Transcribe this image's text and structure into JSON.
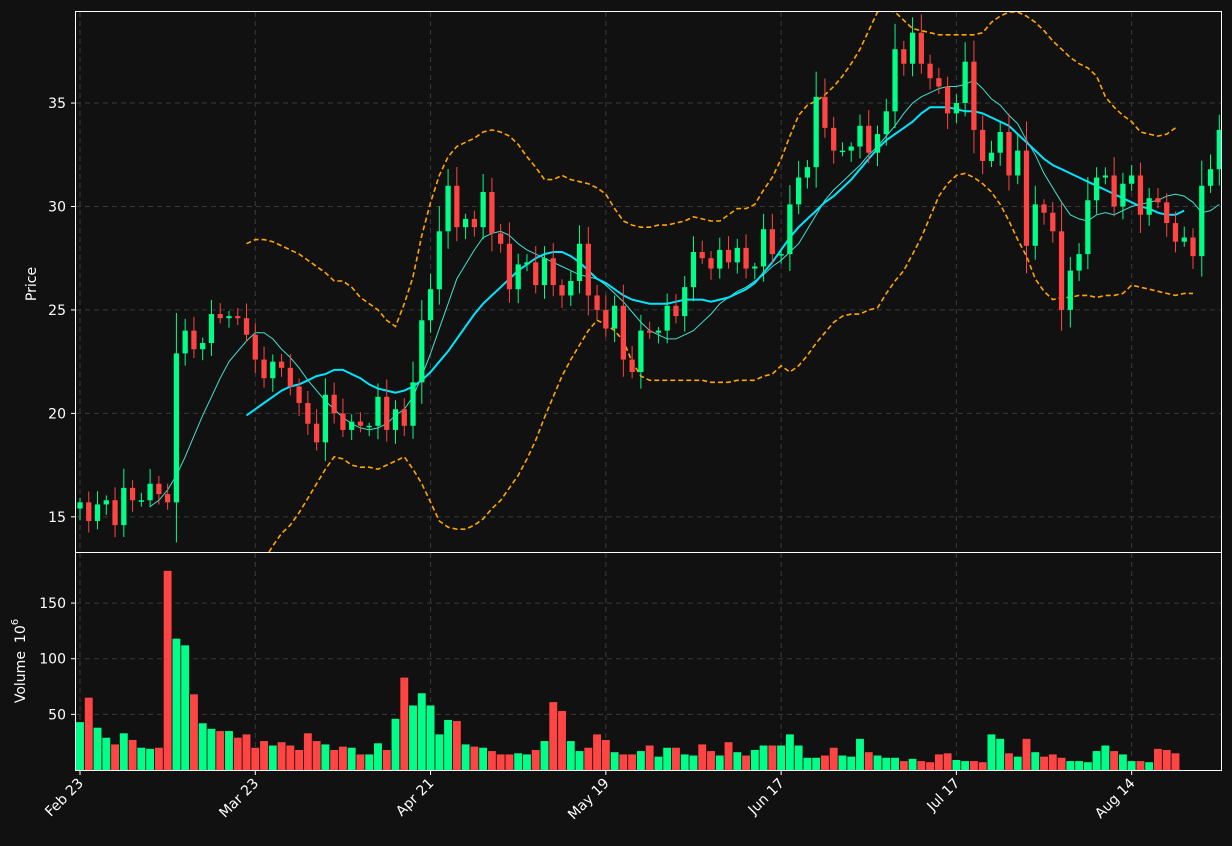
{
  "theme": {
    "background": "#111111",
    "up_color": "#00ff88",
    "down_color": "#ff4444",
    "sma_fast_color": "#40e0d0",
    "sma_slow_color": "#00e5ff",
    "bollinger_color": "#ffa500"
  },
  "chart_data": {
    "type": "candlestick",
    "title": "",
    "xlabel": "",
    "price_ylabel": "Price",
    "volume_ylabel": "Volume",
    "volume_unit_label": "10",
    "volume_unit_exp": "6",
    "price_ylim": [
      13.3,
      39.4
    ],
    "volume_ylim": [
      0,
      195
    ],
    "price_yticks": [
      15,
      20,
      25,
      30,
      35
    ],
    "volume_yticks": [
      50,
      100,
      150
    ],
    "xticks": [
      {
        "index": 0,
        "label": "Feb 23"
      },
      {
        "index": 20,
        "label": "Mar 23"
      },
      {
        "index": 40,
        "label": "Apr 21"
      },
      {
        "index": 60,
        "label": "May 19"
      },
      {
        "index": 80,
        "label": "Jun 17"
      },
      {
        "index": 100,
        "label": "Jul 17"
      },
      {
        "index": 120,
        "label": "Aug 14"
      }
    ],
    "grid": true,
    "series": [
      {
        "name": "Candles",
        "close": [
          15.7,
          14.8,
          15.6,
          15.8,
          14.6,
          16.4,
          15.8,
          15.8,
          16.6,
          16.1,
          15.7,
          22.9,
          24.0,
          23.1,
          23.4,
          24.8,
          24.6,
          24.7,
          24.6,
          23.8,
          22.6,
          21.7,
          22.5,
          22.2,
          21.3,
          20.5,
          19.5,
          18.6,
          20.9,
          20.0,
          19.2,
          19.6,
          19.4,
          19.4,
          20.8,
          19.2,
          20.2,
          19.4,
          21.5,
          24.5,
          26.0,
          28.8,
          31.0,
          29.0,
          29.4,
          29.0,
          30.7,
          28.7,
          28.2,
          26.0,
          27.2,
          27.3,
          26.2,
          27.5,
          26.2,
          25.7,
          26.4,
          28.2,
          25.7,
          25.0,
          24.1,
          25.2,
          22.6,
          22.0,
          24.0,
          23.9,
          24.0,
          25.2,
          24.7,
          26.1,
          27.8,
          27.5,
          27.0,
          27.9,
          27.3,
          28.0,
          27.0,
          27.1,
          28.9,
          27.7,
          27.7,
          30.1,
          31.4,
          31.9,
          35.3,
          33.8,
          32.7,
          32.7,
          32.9,
          33.9,
          32.6,
          33.5,
          34.6,
          37.6,
          36.9,
          38.4,
          36.9,
          36.2,
          35.8,
          34.5,
          35.0,
          37.0,
          33.7,
          32.2,
          32.6,
          33.6,
          31.5,
          32.7,
          28.1,
          30.1,
          29.7,
          28.8,
          25.0,
          26.9,
          27.7,
          30.3,
          31.4,
          31.5,
          30.0,
          31.1,
          31.5,
          29.6,
          30.4,
          30.2,
          29.2,
          28.3,
          28.5,
          27.6,
          31.0,
          31.8,
          33.7
        ]
      },
      {
        "name": "Volume",
        "values": [
          43,
          65,
          38,
          29,
          23,
          33,
          27,
          20,
          19,
          20,
          179,
          118,
          112,
          68,
          42,
          37,
          35,
          35,
          29,
          32,
          20,
          26,
          22,
          25,
          22,
          18,
          33,
          26,
          23,
          18,
          21,
          20,
          14,
          14,
          24,
          18,
          46,
          83,
          58,
          69,
          58,
          32,
          45,
          44,
          23,
          21,
          20,
          17,
          14,
          14,
          15,
          14,
          18,
          26,
          61,
          53,
          26,
          17,
          20,
          32,
          27,
          16,
          14,
          14,
          17,
          22,
          12,
          20,
          20,
          14,
          13,
          23,
          17,
          13,
          25,
          16,
          13,
          18,
          22,
          22,
          22,
          32,
          22,
          11,
          11,
          13,
          20,
          13,
          12,
          28,
          16,
          13,
          11,
          11,
          8,
          10,
          8,
          7,
          14,
          15,
          9,
          8,
          8,
          7,
          32,
          28,
          15,
          12,
          28,
          16,
          12,
          14,
          11,
          8,
          8,
          7,
          17,
          22,
          17,
          14,
          8,
          8,
          7,
          19,
          18,
          15
        ]
      },
      {
        "name": "SMA fast",
        "values": [
          null,
          null,
          null,
          null,
          null,
          null,
          null,
          null,
          15.5,
          15.8,
          16.3,
          17.0,
          17.9,
          18.9,
          19.9,
          20.8,
          21.7,
          22.5,
          23.0,
          23.5,
          23.9,
          23.9,
          23.6,
          23.1,
          22.7,
          22.2,
          21.6,
          21.1,
          20.6,
          20.2,
          19.8,
          19.5,
          19.3,
          19.2,
          19.3,
          19.5,
          19.9,
          20.2,
          20.8,
          21.8,
          22.9,
          24.1,
          25.3,
          26.5,
          27.2,
          27.9,
          28.5,
          28.7,
          28.8,
          28.6,
          28.2,
          27.9,
          27.7,
          27.5,
          27.3,
          27.1,
          26.9,
          26.7,
          26.6,
          26.5,
          26.2,
          25.8,
          25.4,
          24.9,
          24.4,
          24.0,
          23.8,
          23.6,
          23.6,
          23.8,
          24.0,
          24.4,
          24.8,
          25.3,
          25.6,
          25.9,
          26.1,
          26.4,
          26.7,
          27.1,
          27.4,
          27.8,
          28.2,
          28.9,
          29.6,
          30.3,
          30.8,
          31.2,
          31.6,
          32.0,
          32.5,
          32.9,
          33.4,
          33.9,
          34.5,
          35.0,
          35.3,
          35.5,
          35.7,
          35.8,
          35.8,
          35.9,
          36.1,
          35.7,
          35.2,
          34.9,
          34.4,
          34.0,
          33.2,
          32.5,
          31.6,
          30.9,
          30.2,
          29.6,
          29.4,
          29.3,
          29.6,
          29.7,
          29.6,
          29.8,
          30.0,
          30.1,
          30.2,
          30.3,
          30.5,
          30.6,
          30.5,
          30.2,
          29.7,
          29.8,
          30.1
        ]
      },
      {
        "name": "SMA slow",
        "values": [
          null,
          null,
          null,
          null,
          null,
          null,
          null,
          null,
          null,
          null,
          null,
          null,
          null,
          null,
          null,
          null,
          null,
          null,
          null,
          19.9,
          20.2,
          20.5,
          20.8,
          21.1,
          21.3,
          21.4,
          21.6,
          21.8,
          21.9,
          22.1,
          22.1,
          21.9,
          21.7,
          21.4,
          21.2,
          21.1,
          21.0,
          21.1,
          21.3,
          21.6,
          22.0,
          22.5,
          23.0,
          23.6,
          24.2,
          24.8,
          25.3,
          25.7,
          26.1,
          26.5,
          26.9,
          27.2,
          27.5,
          27.7,
          27.8,
          27.8,
          27.6,
          27.3,
          26.9,
          26.5,
          26.3,
          26.0,
          25.7,
          25.5,
          25.4,
          25.3,
          25.3,
          25.3,
          25.4,
          25.5,
          25.5,
          25.5,
          25.4,
          25.5,
          25.6,
          25.8,
          26.0,
          26.3,
          26.8,
          27.3,
          27.9,
          28.5,
          29.0,
          29.4,
          29.8,
          30.2,
          30.5,
          30.9,
          31.3,
          31.8,
          32.3,
          32.8,
          33.2,
          33.5,
          33.8,
          34.1,
          34.5,
          34.8,
          34.8,
          34.8,
          34.7,
          34.6,
          34.6,
          34.5,
          34.3,
          34.1,
          33.9,
          33.5,
          33.1,
          32.7,
          32.3,
          32.0,
          31.8,
          31.6,
          31.4,
          31.2,
          31.0,
          30.8,
          30.6,
          30.4,
          30.2,
          30.0,
          29.9,
          29.7,
          29.6,
          29.6,
          29.8
        ]
      },
      {
        "name": "Bollinger upper",
        "values": [
          null,
          null,
          null,
          null,
          null,
          null,
          null,
          null,
          null,
          null,
          null,
          null,
          null,
          null,
          null,
          null,
          null,
          null,
          null,
          28.2,
          28.4,
          28.4,
          28.3,
          28.1,
          27.9,
          27.7,
          27.4,
          27.1,
          26.8,
          26.4,
          26.4,
          26.1,
          25.6,
          25.3,
          25.0,
          24.5,
          24.2,
          25.3,
          26.6,
          28.6,
          30.2,
          31.5,
          32.4,
          32.9,
          33.1,
          33.3,
          33.6,
          33.7,
          33.6,
          33.4,
          33.0,
          32.4,
          31.9,
          31.3,
          31.3,
          31.5,
          31.3,
          31.2,
          31.1,
          30.9,
          30.6,
          29.9,
          29.3,
          29.1,
          29.0,
          29.0,
          29.1,
          29.1,
          29.2,
          29.3,
          29.5,
          29.4,
          29.3,
          29.3,
          29.6,
          29.9,
          29.9,
          30.1,
          30.8,
          31.4,
          32.3,
          33.4,
          34.4,
          34.9,
          35.1,
          35.4,
          35.8,
          36.3,
          36.9,
          37.6,
          38.5,
          39.4,
          39.5,
          39.4,
          39.0,
          38.6,
          38.5,
          38.4,
          38.3,
          38.3,
          38.3,
          38.3,
          38.3,
          38.4,
          38.9,
          39.2,
          39.4,
          39.4,
          39.2,
          38.9,
          38.5,
          38.0,
          37.6,
          37.2,
          36.9,
          36.7,
          36.3,
          35.3,
          34.8,
          34.4,
          34.1,
          33.6,
          33.5,
          33.4,
          33.5,
          33.8
        ]
      },
      {
        "name": "Bollinger lower",
        "values": [
          null,
          null,
          null,
          null,
          null,
          null,
          null,
          null,
          null,
          null,
          null,
          null,
          null,
          null,
          null,
          null,
          null,
          null,
          null,
          11.7,
          12.3,
          12.9,
          13.6,
          14.2,
          14.6,
          15.2,
          15.9,
          16.6,
          17.3,
          17.9,
          17.8,
          17.5,
          17.4,
          17.4,
          17.3,
          17.5,
          17.7,
          17.9,
          17.3,
          16.6,
          15.7,
          14.8,
          14.5,
          14.4,
          14.4,
          14.6,
          14.9,
          15.4,
          15.8,
          16.4,
          17.0,
          17.8,
          18.7,
          19.8,
          20.8,
          21.8,
          22.6,
          23.3,
          24.0,
          24.5,
          24.3,
          24.0,
          23.5,
          22.5,
          21.8,
          21.6,
          21.6,
          21.6,
          21.6,
          21.6,
          21.6,
          21.6,
          21.5,
          21.5,
          21.5,
          21.6,
          21.6,
          21.6,
          21.8,
          21.9,
          22.3,
          22.0,
          22.3,
          22.8,
          23.4,
          23.9,
          24.4,
          24.7,
          24.8,
          24.8,
          25.0,
          25.1,
          25.8,
          26.4,
          26.9,
          27.7,
          28.5,
          29.5,
          30.5,
          31.1,
          31.5,
          31.6,
          31.4,
          31.1,
          30.7,
          30.1,
          29.3,
          28.4,
          27.6,
          26.5,
          25.9,
          25.5,
          25.6,
          25.6,
          25.7,
          25.7,
          25.6,
          25.7,
          25.7,
          25.8,
          26.2,
          26.1,
          26.0,
          25.9,
          25.8,
          25.7,
          25.8,
          25.8
        ]
      }
    ]
  }
}
